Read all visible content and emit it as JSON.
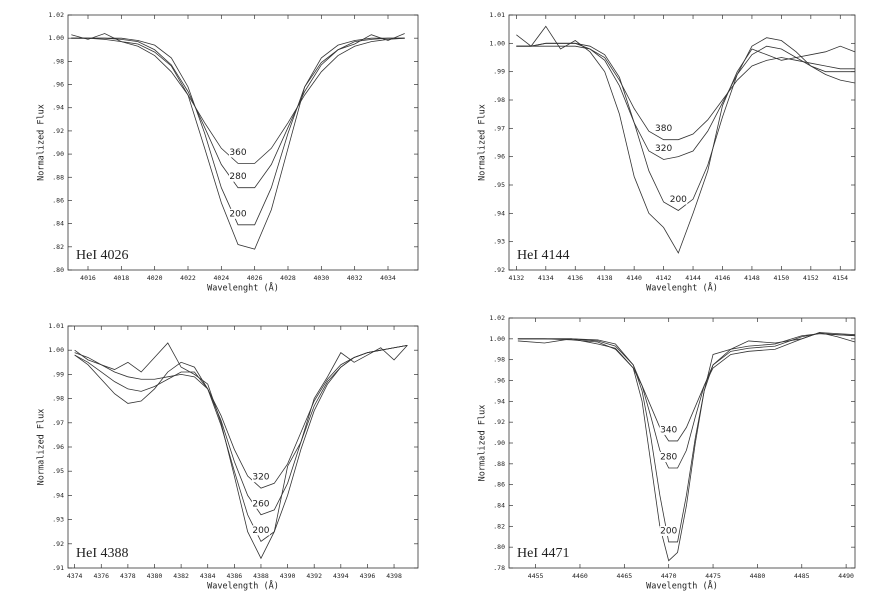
{
  "chart_data": [
    {
      "type": "line",
      "annotation": "HeI 4026",
      "xlabel": "Wavelenght (Å)",
      "ylabel": "Normalized Flux",
      "x": [
        4015,
        4016,
        4017,
        4018,
        4019,
        4020,
        4021,
        4022,
        4023,
        4024,
        4025,
        4026,
        4027,
        4028,
        4029,
        4030,
        4031,
        4032,
        4033,
        4034,
        4035
      ],
      "xlim": [
        4014.8,
        4035.8
      ],
      "xticks": [
        4016,
        4018,
        4020,
        4022,
        4024,
        4026,
        4028,
        4030,
        4032,
        4034
      ],
      "ylim": [
        0.8,
        1.02
      ],
      "yticks": [
        {
          "value": 0.8,
          "label": ".80"
        },
        {
          "value": 0.82,
          "label": ".82"
        },
        {
          "value": 0.84,
          "label": ".84"
        },
        {
          "value": 0.86,
          "label": ".86"
        },
        {
          "value": 0.88,
          "label": ".88"
        },
        {
          "value": 0.9,
          "label": ".90"
        },
        {
          "value": 0.92,
          "label": ".92"
        },
        {
          "value": 0.94,
          "label": ".94"
        },
        {
          "value": 0.96,
          "label": ".96"
        },
        {
          "value": 0.98,
          "label": ".98"
        },
        {
          "value": 1.0,
          "label": "1.00"
        },
        {
          "value": 1.02,
          "label": "1.02"
        }
      ],
      "series": [
        {
          "color": "#333333",
          "values": [
            1.003,
            0.999,
            1.004,
            0.997,
            0.995,
            0.988,
            0.976,
            0.951,
            0.905,
            0.858,
            0.822,
            0.818,
            0.852,
            0.905,
            0.958,
            0.979,
            0.99,
            0.995,
            1.003,
            0.998,
            1.004
          ]
        },
        {
          "name": "360",
          "color": "#333333",
          "values": [
            1.0,
            1.0,
            0.999,
            0.997,
            0.993,
            0.985,
            0.971,
            0.951,
            0.927,
            0.905,
            0.892,
            0.892,
            0.905,
            0.927,
            0.951,
            0.971,
            0.985,
            0.993,
            0.997,
            0.999,
            1.0
          ]
        },
        {
          "name": "280",
          "color": "#333333",
          "values": [
            1.0,
            1.0,
            1.0,
            0.999,
            0.997,
            0.99,
            0.977,
            0.954,
            0.923,
            0.891,
            0.871,
            0.871,
            0.891,
            0.923,
            0.954,
            0.977,
            0.99,
            0.997,
            0.999,
            1.0,
            1.0
          ]
        },
        {
          "name": "200",
          "color": "#333333",
          "values": [
            1.0,
            1.0,
            1.0,
            1.0,
            0.998,
            0.994,
            0.983,
            0.958,
            0.918,
            0.871,
            0.839,
            0.839,
            0.871,
            0.918,
            0.958,
            0.983,
            0.994,
            0.998,
            1.0,
            1.0,
            1.0
          ]
        }
      ]
    },
    {
      "type": "line",
      "annotation": "HeI 4144",
      "xlabel": "Wavelenght (Å)",
      "ylabel": "Normalized Flux",
      "x": [
        4132,
        4133,
        4134,
        4135,
        4136,
        4137,
        4138,
        4139,
        4140,
        4141,
        4142,
        4143,
        4144,
        4145,
        4146,
        4147,
        4148,
        4149,
        4150,
        4151,
        4152,
        4153,
        4154,
        4155
      ],
      "xlim": [
        4131.5,
        4155
      ],
      "xticks": [
        4132,
        4134,
        4136,
        4138,
        4140,
        4142,
        4144,
        4146,
        4148,
        4150,
        4152,
        4154
      ],
      "ylim": [
        0.92,
        1.01
      ],
      "yticks": [
        {
          "value": 0.92,
          "label": ".92"
        },
        {
          "value": 0.93,
          "label": ".93"
        },
        {
          "value": 0.94,
          "label": ".94"
        },
        {
          "value": 0.95,
          "label": ".95"
        },
        {
          "value": 0.96,
          "label": ".96"
        },
        {
          "value": 0.97,
          "label": ".97"
        },
        {
          "value": 0.98,
          "label": ".98"
        },
        {
          "value": 0.99,
          "label": ".99"
        },
        {
          "value": 1.0,
          "label": "1.00"
        },
        {
          "value": 1.01,
          "label": "1.01"
        }
      ],
      "series": [
        {
          "color": "#333333",
          "values": [
            1.003,
            0.999,
            1.006,
            0.998,
            1.001,
            0.997,
            0.99,
            0.975,
            0.953,
            0.94,
            0.935,
            0.926,
            0.94,
            0.955,
            0.978,
            0.99,
            0.998,
            0.996,
            0.994,
            0.995,
            0.996,
            0.997,
            0.999,
            0.997
          ]
        },
        {
          "name": "380",
          "color": "#333333",
          "values": [
            0.999,
            0.999,
            0.999,
            0.999,
            0.999,
            0.998,
            0.995,
            0.987,
            0.977,
            0.969,
            0.966,
            0.966,
            0.968,
            0.973,
            0.98,
            0.987,
            0.992,
            0.994,
            0.995,
            0.994,
            0.993,
            0.992,
            0.991,
            0.991
          ]
        },
        {
          "name": "320",
          "color": "#333333",
          "values": [
            0.999,
            0.999,
            1.0,
            1.0,
            1.0,
            0.998,
            0.994,
            0.985,
            0.972,
            0.962,
            0.959,
            0.96,
            0.962,
            0.969,
            0.979,
            0.989,
            0.996,
            0.999,
            0.998,
            0.995,
            0.992,
            0.99,
            0.99,
            0.99
          ]
        },
        {
          "name": "200",
          "color": "#333333",
          "values": [
            0.999,
            0.999,
            1.0,
            1.0,
            1.0,
            0.999,
            0.996,
            0.988,
            0.972,
            0.955,
            0.944,
            0.941,
            0.945,
            0.957,
            0.974,
            0.989,
            0.999,
            1.002,
            1.001,
            0.997,
            0.992,
            0.989,
            0.987,
            0.986
          ]
        }
      ]
    },
    {
      "type": "line",
      "annotation": "HeI 4388",
      "xlabel": "Wavelength (Å)",
      "ylabel": "Normalized Flux",
      "x": [
        4374,
        4375,
        4376,
        4377,
        4378,
        4379,
        4380,
        4381,
        4382,
        4383,
        4384,
        4385,
        4386,
        4387,
        4388,
        4389,
        4390,
        4391,
        4392,
        4393,
        4394,
        4395,
        4396,
        4397,
        4398,
        4399
      ],
      "xlim": [
        4373.5,
        4399.8
      ],
      "xticks": [
        4374,
        4376,
        4378,
        4380,
        4382,
        4384,
        4386,
        4388,
        4390,
        4392,
        4394,
        4396,
        4398
      ],
      "ylim": [
        0.91,
        1.01
      ],
      "yticks": [
        {
          "value": 0.91,
          "label": ".91"
        },
        {
          "value": 0.92,
          "label": ".92"
        },
        {
          "value": 0.93,
          "label": ".93"
        },
        {
          "value": 0.94,
          "label": ".94"
        },
        {
          "value": 0.95,
          "label": ".95"
        },
        {
          "value": 0.96,
          "label": ".96"
        },
        {
          "value": 0.97,
          "label": ".97"
        },
        {
          "value": 0.98,
          "label": ".98"
        },
        {
          "value": 0.99,
          "label": ".99"
        },
        {
          "value": 1.0,
          "label": "1.00"
        },
        {
          "value": 1.01,
          "label": "1.01"
        }
      ],
      "series": [
        {
          "color": "#333333",
          "values": [
            1.0,
            0.996,
            0.994,
            0.992,
            0.995,
            0.991,
            0.997,
            1.003,
            0.993,
            0.99,
            0.986,
            0.97,
            0.948,
            0.925,
            0.914,
            0.925,
            0.952,
            0.962,
            0.98,
            0.989,
            0.999,
            0.995,
            0.998,
            1.001,
            0.996,
            1.002
          ]
        },
        {
          "name": "320",
          "color": "#333333",
          "values": [
            0.999,
            0.997,
            0.994,
            0.991,
            0.989,
            0.988,
            0.988,
            0.989,
            0.99,
            0.989,
            0.984,
            0.973,
            0.959,
            0.948,
            0.943,
            0.945,
            0.953,
            0.966,
            0.979,
            0.988,
            0.994,
            0.997,
            0.999,
            1.0,
            1.001,
            1.002
          ]
        },
        {
          "name": "260",
          "color": "#333333",
          "values": [
            0.998,
            0.995,
            0.991,
            0.987,
            0.984,
            0.983,
            0.985,
            0.988,
            0.991,
            0.991,
            0.984,
            0.971,
            0.954,
            0.94,
            0.932,
            0.934,
            0.945,
            0.962,
            0.977,
            0.987,
            0.993,
            0.997,
            0.999,
            1.0,
            1.001,
            1.002
          ]
        },
        {
          "name": "200",
          "color": "#333333",
          "values": [
            0.998,
            0.994,
            0.988,
            0.982,
            0.978,
            0.979,
            0.984,
            0.991,
            0.995,
            0.993,
            0.984,
            0.969,
            0.95,
            0.932,
            0.921,
            0.925,
            0.94,
            0.959,
            0.975,
            0.986,
            0.993,
            0.997,
            0.999,
            1.0,
            1.001,
            1.002
          ]
        }
      ]
    },
    {
      "type": "line",
      "annotation": "HeI 4471",
      "xlabel": "Wavelength (Å)",
      "ylabel": "Normalized Flux",
      "x": [
        4453,
        4456,
        4459,
        4462,
        4464,
        4466,
        4467,
        4468,
        4469,
        4470,
        4471,
        4472,
        4473,
        4474,
        4475,
        4477,
        4479,
        4482,
        4485,
        4487,
        4489,
        4491
      ],
      "xlim": [
        4452,
        4491
      ],
      "xticks": [
        4455,
        4460,
        4465,
        4470,
        4475,
        4480,
        4485,
        4490
      ],
      "ylim": [
        0.78,
        1.02
      ],
      "yticks": [
        {
          "value": 0.78,
          "label": ".78"
        },
        {
          "value": 0.8,
          "label": ".80"
        },
        {
          "value": 0.82,
          "label": ".82"
        },
        {
          "value": 0.84,
          "label": ".84"
        },
        {
          "value": 0.86,
          "label": ".86"
        },
        {
          "value": 0.88,
          "label": ".88"
        },
        {
          "value": 0.9,
          "label": ".90"
        },
        {
          "value": 0.92,
          "label": ".92"
        },
        {
          "value": 0.94,
          "label": ".94"
        },
        {
          "value": 0.96,
          "label": ".96"
        },
        {
          "value": 0.98,
          "label": ".98"
        },
        {
          "value": 1.0,
          "label": "1.00"
        },
        {
          "value": 1.02,
          "label": "1.02"
        }
      ],
      "series": [
        {
          "color": "#333333",
          "values": [
            0.998,
            0.996,
            1.0,
            0.995,
            0.991,
            0.972,
            0.94,
            0.88,
            0.82,
            0.787,
            0.795,
            0.84,
            0.9,
            0.95,
            0.985,
            0.99,
            0.998,
            0.996,
            1.0,
            1.006,
            1.002,
            0.997
          ]
        },
        {
          "name": "340",
          "color": "#333333",
          "values": [
            1.0,
            1.0,
            0.999,
            0.997,
            0.99,
            0.972,
            0.955,
            0.935,
            0.915,
            0.902,
            0.902,
            0.915,
            0.935,
            0.955,
            0.972,
            0.985,
            0.988,
            0.99,
            1.0,
            1.006,
            1.005,
            1.004
          ]
        },
        {
          "name": "280",
          "color": "#333333",
          "values": [
            1.0,
            1.0,
            1.0,
            0.998,
            0.993,
            0.975,
            0.955,
            0.925,
            0.893,
            0.876,
            0.876,
            0.893,
            0.925,
            0.955,
            0.975,
            0.988,
            0.991,
            0.993,
            1.002,
            1.005,
            1.004,
            1.003
          ]
        },
        {
          "name": "200",
          "color": "#333333",
          "values": [
            1.0,
            1.0,
            1.0,
            0.999,
            0.995,
            0.975,
            0.95,
            0.905,
            0.85,
            0.805,
            0.805,
            0.85,
            0.905,
            0.95,
            0.975,
            0.99,
            0.993,
            0.995,
            1.003,
            1.005,
            1.004,
            1.003
          ]
        }
      ]
    }
  ]
}
